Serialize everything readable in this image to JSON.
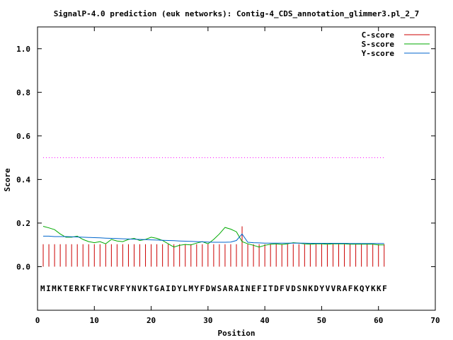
{
  "chart_data": {
    "type": "line",
    "title": "SignalP-4.0 prediction (euk networks): Contig-4_CDS_annotation_glimmer3.pl_2_7",
    "xlabel": "Position",
    "ylabel": "Score",
    "xlim": [
      0,
      70
    ],
    "ylim": [
      -0.2,
      1.1
    ],
    "x_ticks": [
      0,
      10,
      20,
      30,
      40,
      50,
      60,
      70
    ],
    "y_ticks": [
      0.0,
      0.2,
      0.4,
      0.6,
      0.8,
      1.0
    ],
    "y_tick_labels": [
      "0.0",
      "0.2",
      "0.4",
      "0.6",
      "0.8",
      "1.0"
    ],
    "grid": false,
    "legend_position": "top-right",
    "threshold": {
      "value": 0.5,
      "x_range": [
        1,
        61
      ],
      "color": "#ff00ff"
    },
    "sequence": "MIMKTERKFTWCVRFYNVKTGAIDYLMYFDWSARAINEFITDFVDSNKDYVVRAFKQYKKF",
    "sequence_y": -0.1,
    "series": [
      {
        "name": "C-score",
        "style": "impulses",
        "color": "#cc0000",
        "x": [
          1,
          2,
          3,
          4,
          5,
          6,
          7,
          8,
          9,
          10,
          11,
          12,
          13,
          14,
          15,
          16,
          17,
          18,
          19,
          20,
          21,
          22,
          23,
          24,
          25,
          26,
          27,
          28,
          29,
          30,
          31,
          32,
          33,
          34,
          35,
          36,
          37,
          38,
          39,
          40,
          41,
          42,
          43,
          44,
          45,
          46,
          47,
          48,
          49,
          50,
          51,
          52,
          53,
          54,
          55,
          56,
          57,
          58,
          59,
          60,
          61
        ],
        "values": [
          0.103,
          0.103,
          0.103,
          0.103,
          0.103,
          0.103,
          0.103,
          0.103,
          0.103,
          0.103,
          0.103,
          0.103,
          0.103,
          0.103,
          0.103,
          0.103,
          0.103,
          0.103,
          0.103,
          0.103,
          0.103,
          0.103,
          0.103,
          0.103,
          0.103,
          0.103,
          0.103,
          0.103,
          0.103,
          0.103,
          0.103,
          0.103,
          0.103,
          0.103,
          0.103,
          0.185,
          0.103,
          0.103,
          0.103,
          0.103,
          0.103,
          0.103,
          0.103,
          0.103,
          0.103,
          0.103,
          0.103,
          0.103,
          0.103,
          0.103,
          0.103,
          0.103,
          0.103,
          0.103,
          0.103,
          0.103,
          0.103,
          0.103,
          0.103,
          0.103,
          0.103
        ]
      },
      {
        "name": "S-score",
        "style": "line",
        "color": "#00aa00",
        "x": [
          1,
          2,
          3,
          4,
          5,
          6,
          7,
          8,
          9,
          10,
          11,
          12,
          13,
          14,
          15,
          16,
          17,
          18,
          19,
          20,
          21,
          22,
          23,
          24,
          25,
          26,
          27,
          28,
          29,
          30,
          31,
          32,
          33,
          34,
          35,
          36,
          37,
          38,
          39,
          40,
          41,
          42,
          43,
          44,
          45,
          46,
          47,
          48,
          49,
          50,
          51,
          52,
          53,
          54,
          55,
          56,
          57,
          58,
          59,
          60,
          61
        ],
        "values": [
          0.185,
          0.178,
          0.17,
          0.15,
          0.135,
          0.135,
          0.14,
          0.125,
          0.115,
          0.11,
          0.115,
          0.105,
          0.125,
          0.118,
          0.115,
          0.125,
          0.13,
          0.12,
          0.125,
          0.135,
          0.13,
          0.12,
          0.105,
          0.09,
          0.098,
          0.102,
          0.1,
          0.108,
          0.115,
          0.105,
          0.125,
          0.15,
          0.18,
          0.172,
          0.16,
          0.115,
          0.105,
          0.098,
          0.09,
          0.098,
          0.103,
          0.105,
          0.102,
          0.105,
          0.11,
          0.108,
          0.105,
          0.103,
          0.105,
          0.105,
          0.103,
          0.105,
          0.105,
          0.105,
          0.103,
          0.103,
          0.103,
          0.103,
          0.103,
          0.1,
          0.1
        ]
      },
      {
        "name": "Y-score",
        "style": "line",
        "color": "#0066cc",
        "x": [
          1,
          2,
          3,
          4,
          5,
          6,
          7,
          8,
          9,
          10,
          11,
          12,
          13,
          14,
          15,
          16,
          17,
          18,
          19,
          20,
          21,
          22,
          23,
          24,
          25,
          26,
          27,
          28,
          29,
          30,
          31,
          32,
          33,
          34,
          35,
          36,
          37,
          38,
          39,
          40,
          41,
          42,
          43,
          44,
          45,
          46,
          47,
          48,
          49,
          50,
          51,
          52,
          53,
          54,
          55,
          56,
          57,
          58,
          59,
          60,
          61
        ],
        "values": [
          0.14,
          0.14,
          0.138,
          0.138,
          0.138,
          0.137,
          0.136,
          0.135,
          0.134,
          0.133,
          0.132,
          0.131,
          0.13,
          0.129,
          0.128,
          0.127,
          0.126,
          0.125,
          0.124,
          0.123,
          0.122,
          0.121,
          0.12,
          0.119,
          0.118,
          0.117,
          0.116,
          0.115,
          0.114,
          0.113,
          0.112,
          0.112,
          0.112,
          0.113,
          0.12,
          0.15,
          0.112,
          0.11,
          0.109,
          0.108,
          0.108,
          0.108,
          0.108,
          0.108,
          0.108,
          0.108,
          0.108,
          0.107,
          0.107,
          0.107,
          0.107,
          0.107,
          0.107,
          0.107,
          0.106,
          0.106,
          0.106,
          0.106,
          0.106,
          0.106,
          0.106
        ]
      }
    ]
  }
}
